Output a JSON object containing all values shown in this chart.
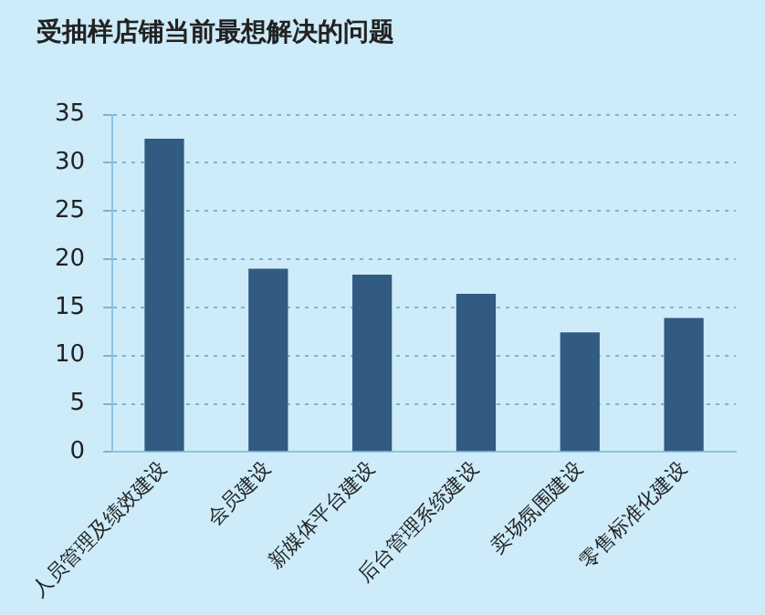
{
  "chart_data": {
    "type": "bar",
    "title": "受抽样店铺当前最想解决的问题",
    "categories": [
      "人员管理及绩效建设",
      "会员建设",
      "新媒体平台建设",
      "后台管理系统建设",
      "卖场氛围建设",
      "零售标准化建设"
    ],
    "values": [
      32.5,
      19,
      18.4,
      16.4,
      12.4,
      13.9
    ],
    "color": "#315b80",
    "ylim": [
      0,
      35
    ],
    "yticks": [
      0,
      5,
      10,
      15,
      20,
      25,
      30,
      35
    ],
    "grid": "y",
    "legend": false
  }
}
